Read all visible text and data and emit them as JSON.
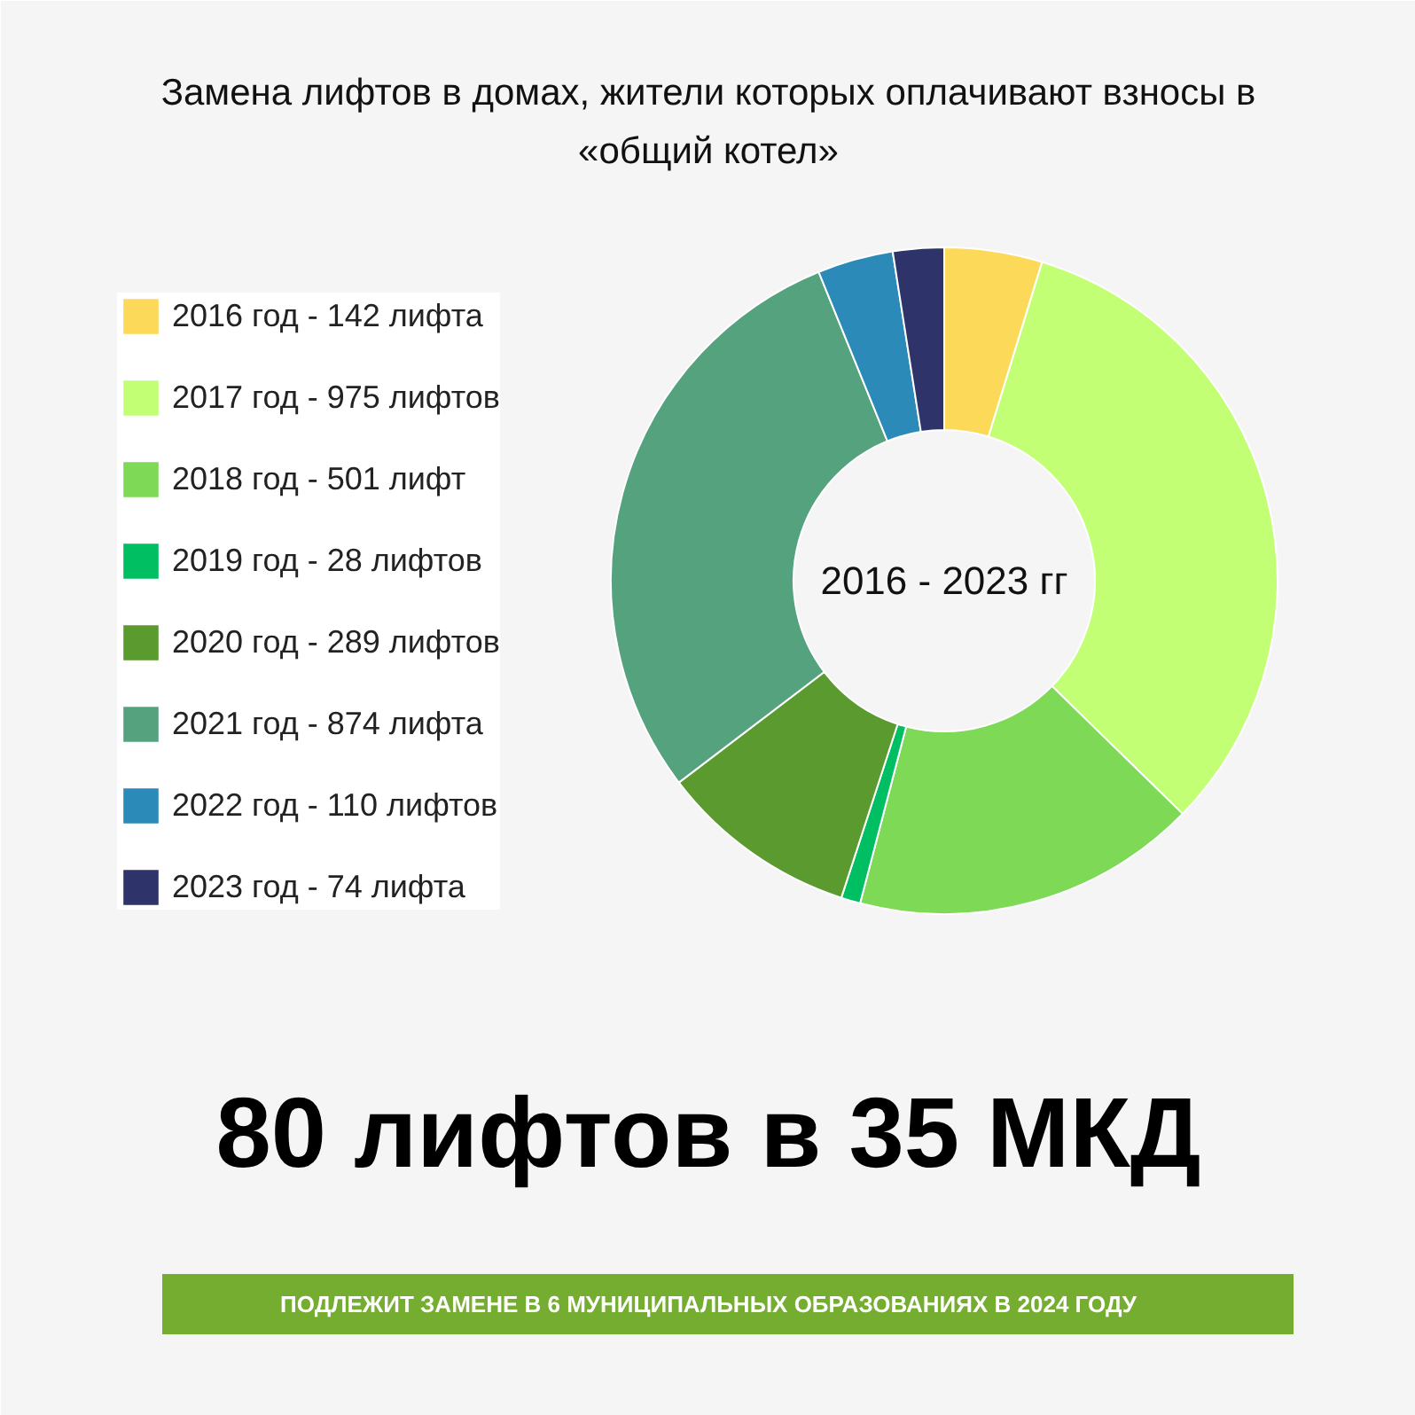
{
  "chart_data": {
    "type": "donut",
    "title": "Замена лифтов в домах, жители которых оплачивают взносы в «общий котел»",
    "categories": [
      "2016 год",
      "2017 год",
      "2018 год",
      "2019 год",
      "2020 год",
      "2021 год",
      "2022 год",
      "2023 год"
    ],
    "values": [
      142,
      975,
      501,
      28,
      289,
      874,
      110,
      74
    ],
    "value_labels": [
      "142 лифта",
      "975 лифтов",
      "501 лифт",
      "28 лифтов",
      "289 лифтов",
      "874 лифта",
      "110 лифтов",
      "74 лифта"
    ],
    "colors": [
      "#fdd95a",
      "#c2ff74",
      "#7ed957",
      "#00bf63",
      "#5a9a2e",
      "#55a27e",
      "#2b8ab8",
      "#2e3469"
    ],
    "legend": "left",
    "annotations": [
      "2016 - 2023 гг",
      "80 лифтов в 35 МКД",
      "ПОДЛЕЖИТ ЗАМЕНЕ В 6 МУНИЦИПАЛЬНЫХ ОБРАЗОВАНИЯХ В 2024 ГОДУ"
    ]
  }
}
